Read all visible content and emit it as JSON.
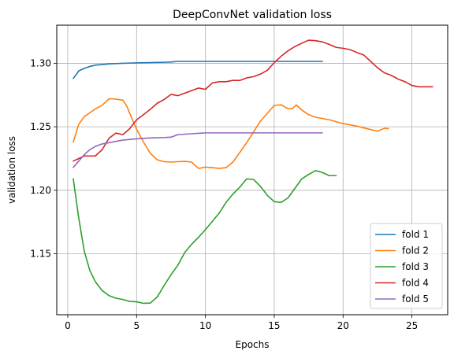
{
  "chart_data": {
    "type": "line",
    "title": "DeepConvNet validation loss",
    "xlabel": "Epochs",
    "ylabel": "validation loss",
    "xlim": [
      -0.8,
      27.6
    ],
    "ylim": [
      1.102,
      1.33
    ],
    "xticks": [
      0,
      5,
      10,
      15,
      20,
      25
    ],
    "xtick_labels": [
      "0",
      "5",
      "10",
      "15",
      "20",
      "25"
    ],
    "yticks": [
      1.15,
      1.2,
      1.25,
      1.3
    ],
    "ytick_labels": [
      "1.15",
      "1.20",
      "1.25",
      "1.30"
    ],
    "grid": true,
    "legend_position": "lower-right",
    "series": [
      {
        "name": "fold 1",
        "color": "#1f77b4",
        "x": [
          0.4,
          0.8,
          1.2,
          1.6,
          2.0,
          3.0,
          4.0,
          5.0,
          6.0,
          7.0,
          7.5,
          8.0,
          10.0,
          12.0,
          14.0,
          16.0,
          18.0,
          18.5
        ],
        "y": [
          1.288,
          1.294,
          1.296,
          1.2975,
          1.2985,
          1.2995,
          1.3,
          1.3003,
          1.3005,
          1.3008,
          1.301,
          1.3015,
          1.3015,
          1.3015,
          1.3015,
          1.3015,
          1.3015,
          1.3015
        ]
      },
      {
        "name": "fold 2",
        "color": "#ff7f0e",
        "x": [
          0.4,
          0.8,
          1.2,
          1.6,
          2.0,
          2.5,
          3.0,
          3.3,
          4.0,
          4.3,
          4.6,
          5.0,
          5.5,
          6.0,
          6.5,
          7.0,
          7.5,
          8.0,
          8.5,
          9.0,
          9.5,
          10.0,
          10.5,
          11.0,
          11.5,
          12.0,
          13.0,
          14.0,
          15.0,
          15.5,
          16.0,
          16.3,
          16.6,
          17.0,
          17.5,
          18.0,
          19.0,
          20.0,
          21.0,
          22.0,
          22.5,
          23.0,
          23.3
        ],
        "y": [
          1.238,
          1.252,
          1.258,
          1.261,
          1.264,
          1.267,
          1.272,
          1.272,
          1.271,
          1.266,
          1.258,
          1.248,
          1.238,
          1.229,
          1.224,
          1.2225,
          1.2222,
          1.2225,
          1.2228,
          1.2222,
          1.2172,
          1.2182,
          1.2178,
          1.2172,
          1.2178,
          1.2222,
          1.2375,
          1.2545,
          1.2668,
          1.2673,
          1.2642,
          1.2642,
          1.2672,
          1.2632,
          1.2595,
          1.2575,
          1.2555,
          1.2525,
          1.2505,
          1.2478,
          1.2465,
          1.2488,
          1.2485
        ]
      },
      {
        "name": "fold 3",
        "color": "#2ca02c",
        "x": [
          0.4,
          0.8,
          1.2,
          1.6,
          2.0,
          2.5,
          3.0,
          3.5,
          4.0,
          4.5,
          5.0,
          5.5,
          6.0,
          6.5,
          7.0,
          7.5,
          8.0,
          8.5,
          9.0,
          9.5,
          10.0,
          10.5,
          11.0,
          11.5,
          12.0,
          12.5,
          13.0,
          13.5,
          14.0,
          14.5,
          15.0,
          15.5,
          16.0,
          16.5,
          17.0,
          17.5,
          18.0,
          18.5,
          19.0,
          19.5
        ],
        "y": [
          1.209,
          1.178,
          1.152,
          1.137,
          1.128,
          1.121,
          1.117,
          1.115,
          1.114,
          1.1125,
          1.1122,
          1.111,
          1.1112,
          1.116,
          1.125,
          1.1335,
          1.141,
          1.151,
          1.1575,
          1.163,
          1.169,
          1.1755,
          1.182,
          1.1905,
          1.197,
          1.2025,
          1.209,
          1.2085,
          1.203,
          1.196,
          1.191,
          1.1905,
          1.194,
          1.2015,
          1.209,
          1.2125,
          1.2155,
          1.214,
          1.2115,
          1.2115
        ]
      },
      {
        "name": "fold 4",
        "color": "#d62728",
        "x": [
          0.4,
          0.8,
          1.2,
          1.6,
          2.0,
          2.5,
          3.0,
          3.5,
          4.0,
          4.5,
          5.0,
          5.5,
          6.0,
          6.5,
          7.0,
          7.5,
          8.0,
          8.5,
          9.0,
          9.5,
          10.0,
          10.5,
          11.0,
          11.5,
          12.0,
          12.5,
          13.0,
          13.5,
          14.0,
          14.5,
          15.0,
          15.5,
          16.0,
          16.5,
          17.0,
          17.5,
          18.0,
          18.5,
          19.0,
          19.5,
          20.0,
          20.5,
          21.0,
          21.5,
          22.0,
          22.5,
          23.0,
          23.5,
          24.0,
          24.5,
          25.0,
          25.5,
          26.0,
          26.5
        ],
        "y": [
          1.223,
          1.225,
          1.227,
          1.227,
          1.227,
          1.232,
          1.241,
          1.245,
          1.2438,
          1.2485,
          1.2555,
          1.2595,
          1.2638,
          1.2685,
          1.2715,
          1.2755,
          1.2745,
          1.2765,
          1.2785,
          1.2805,
          1.2795,
          1.2845,
          1.2855,
          1.2855,
          1.2865,
          1.2865,
          1.2885,
          1.2895,
          1.2915,
          1.2945,
          1.3005,
          1.3055,
          1.3098,
          1.3132,
          1.3158,
          1.3182,
          1.3178,
          1.3168,
          1.3148,
          1.3125,
          1.3118,
          1.3108,
          1.3085,
          1.3065,
          1.3015,
          1.2965,
          1.2925,
          1.2905,
          1.2875,
          1.2855,
          1.2825,
          1.2815,
          1.2815,
          1.2815
        ]
      },
      {
        "name": "fold 5",
        "color": "#9467bd",
        "x": [
          0.4,
          0.8,
          1.2,
          1.6,
          2.0,
          2.5,
          3.0,
          4.0,
          5.0,
          6.0,
          7.0,
          7.5,
          8.0,
          9.0,
          10.0,
          12.0,
          14.0,
          16.0,
          18.0,
          18.5
        ],
        "y": [
          1.218,
          1.223,
          1.228,
          1.232,
          1.2345,
          1.2365,
          1.2375,
          1.2395,
          1.2405,
          1.2412,
          1.2415,
          1.2418,
          1.2438,
          1.2445,
          1.2452,
          1.2452,
          1.2452,
          1.2452,
          1.2452,
          1.2452
        ]
      }
    ]
  }
}
